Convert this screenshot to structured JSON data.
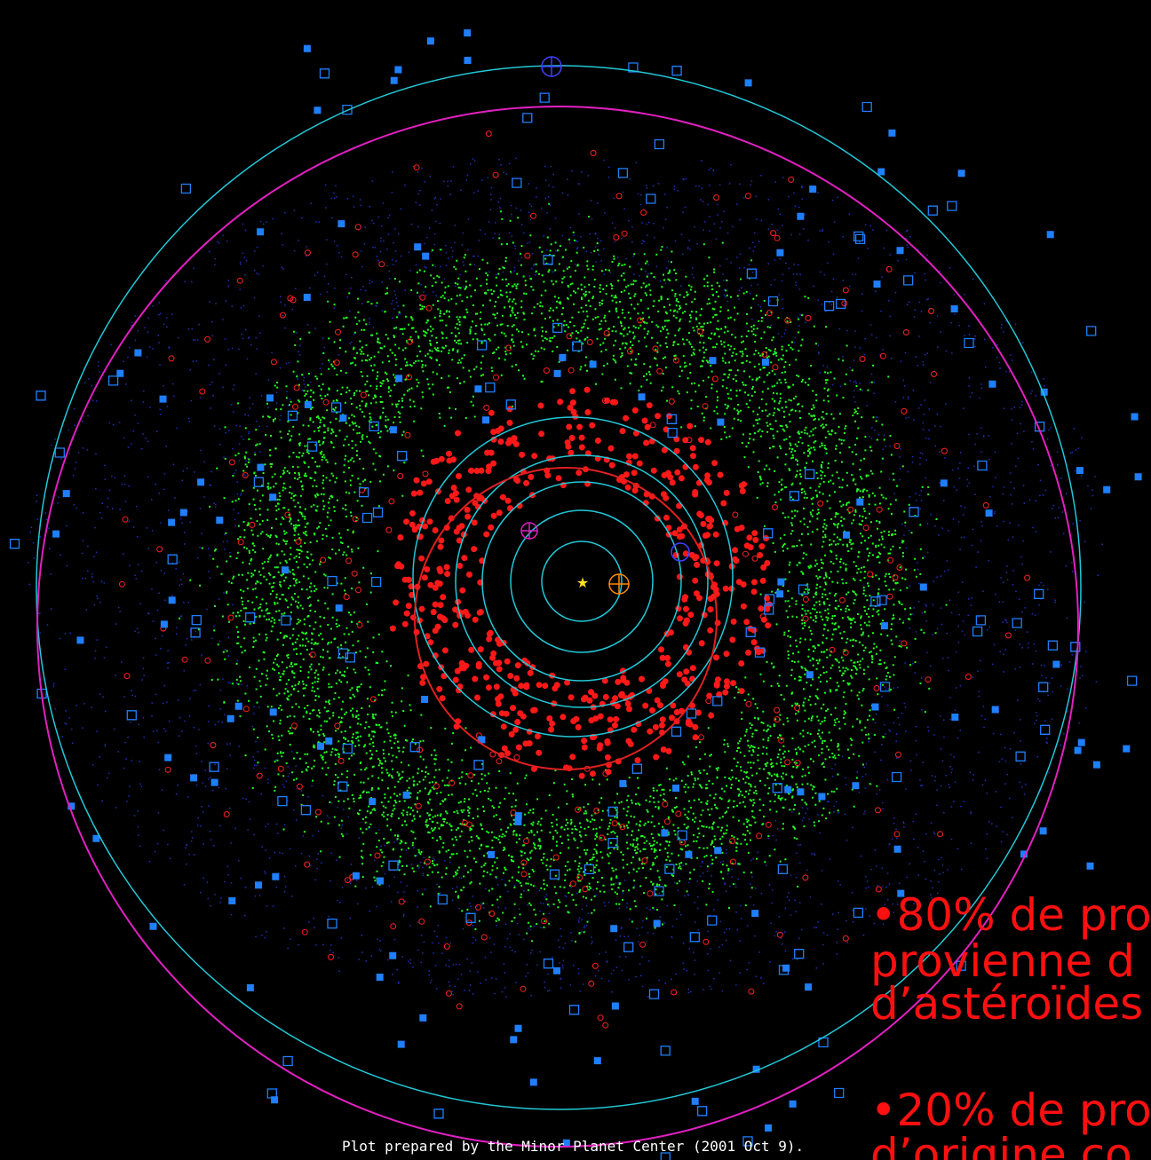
{
  "footer": "Plot prepared by the Minor Planet Center (2001 Oct 9).",
  "bullets": [
    {
      "lines": [
        "•80% de pro",
        "provienne d",
        "d’astéroïdes"
      ]
    },
    {
      "lines": [
        "•20% de pro",
        "d’origine co"
      ]
    }
  ]
}
